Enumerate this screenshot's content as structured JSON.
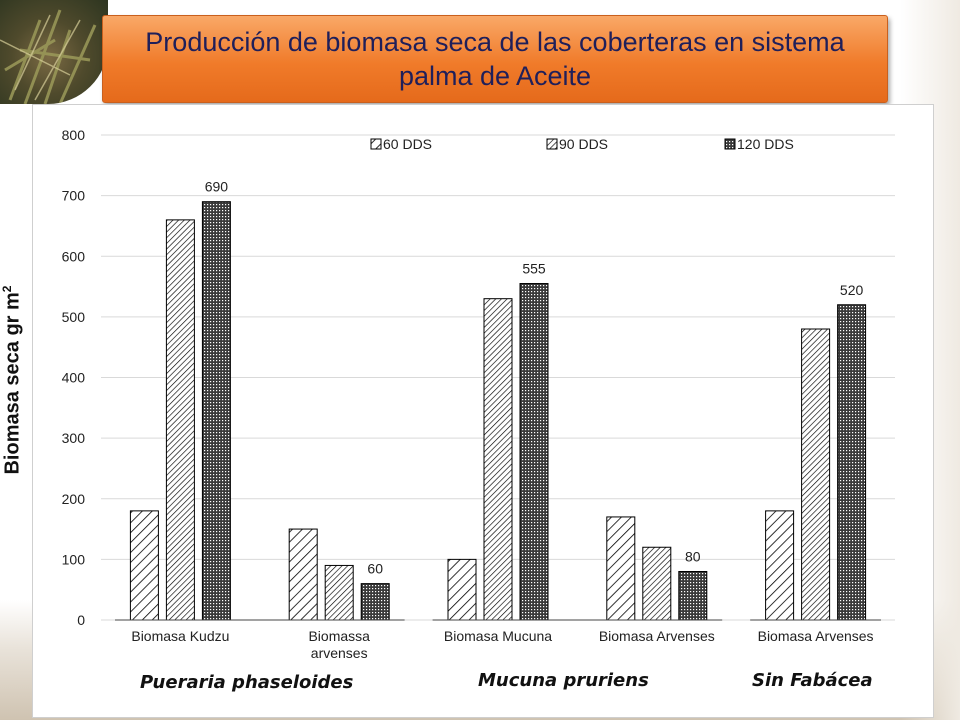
{
  "slide": {
    "title": "Producción de biomasa seca de las coberteras en sistema palma de Aceite"
  },
  "chart_data": {
    "type": "bar",
    "ylabel": "Biomasa seca gr m",
    "ylabel_superscript": "2",
    "ylim": [
      0,
      800
    ],
    "yticks": [
      0,
      100,
      200,
      300,
      400,
      500,
      600,
      700,
      800
    ],
    "grid": true,
    "legend_position": "top",
    "categories": [
      "Biomasa Kudzu",
      "Biomassa\narvenses",
      "Biomasa Mucuna",
      "Biomasa Arvenses",
      "Biomasa Arvenses"
    ],
    "series": [
      {
        "name": "60 DDS",
        "pattern": "wide-diagonal",
        "values": [
          180,
          150,
          100,
          170,
          180
        ]
      },
      {
        "name": "90 DDS",
        "pattern": "narrow-diagonal",
        "values": [
          660,
          90,
          530,
          120,
          480
        ]
      },
      {
        "name": "120 DDS",
        "pattern": "dense-dots",
        "values": [
          690,
          60,
          555,
          80,
          520
        ]
      }
    ],
    "data_labels": [
      {
        "category_index": 0,
        "series_index": 2,
        "text": "690"
      },
      {
        "category_index": 1,
        "series_index": 2,
        "text": "60"
      },
      {
        "category_index": 2,
        "series_index": 2,
        "text": "555"
      },
      {
        "category_index": 3,
        "series_index": 2,
        "text": "80"
      },
      {
        "category_index": 4,
        "series_index": 2,
        "text": "520"
      }
    ],
    "groups": [
      {
        "label": "Pueraria phaseloides",
        "categories": [
          0,
          1
        ]
      },
      {
        "label": "Mucuna pruriens",
        "categories": [
          2,
          3
        ]
      },
      {
        "label": "Sin Fabácea",
        "categories": [
          4
        ]
      }
    ]
  },
  "colors": {
    "title_fill": "#f07b2a",
    "title_text": "#1f1f5a",
    "bar_stroke": "#000000"
  }
}
